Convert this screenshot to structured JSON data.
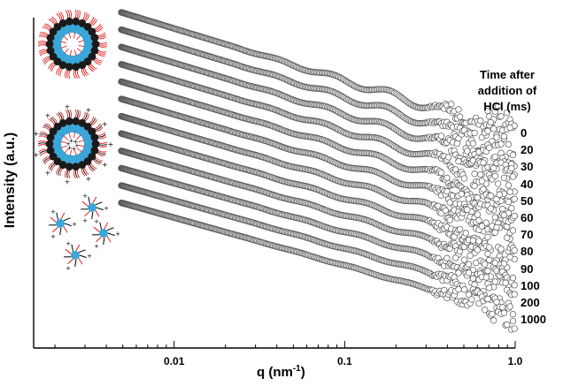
{
  "chart_data": {
    "type": "scatter",
    "xlabel": {
      "base": "q (nm",
      "exp": "-1",
      "close": ")"
    },
    "ylabel": "Intensity (a.u.)",
    "xscale": "log",
    "xlim": [
      0.0015,
      1.0
    ],
    "x_ticks": [
      {
        "value": 0.01,
        "label": "0.01"
      },
      {
        "value": 0.1,
        "label": "0.1"
      },
      {
        "value": 1.0,
        "label": "1.0"
      }
    ],
    "q_range": [
      0.0049,
      0.99
    ],
    "marker": "open-circle",
    "legend_title": [
      "Time after",
      "addition of",
      "HCl (ms)"
    ],
    "series": [
      {
        "name": "0",
        "offset": 0
      },
      {
        "name": "20",
        "offset": 1
      },
      {
        "name": "30",
        "offset": 2
      },
      {
        "name": "40",
        "offset": 3
      },
      {
        "name": "50",
        "offset": 4
      },
      {
        "name": "60",
        "offset": 5
      },
      {
        "name": "70",
        "offset": 6
      },
      {
        "name": "80",
        "offset": 7
      },
      {
        "name": "90",
        "offset": 8
      },
      {
        "name": "100",
        "offset": 9
      },
      {
        "name": "200",
        "offset": 10
      },
      {
        "name": "1000",
        "offset": 11
      }
    ],
    "insets": [
      "vesicle",
      "vesicle-with-charges",
      "micelles"
    ],
    "colors": {
      "head": "#1a1a1a",
      "core": "#3aa7d8",
      "tail": "#e02020",
      "charge": "#000000"
    }
  }
}
